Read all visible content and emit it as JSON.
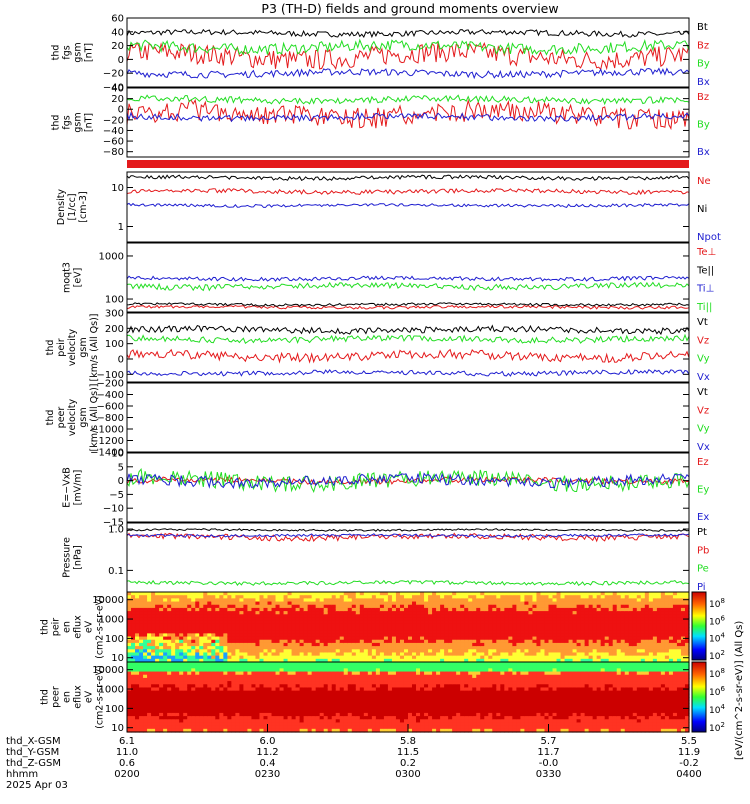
{
  "title": "P3 (TH-D) fields and ground moments overview",
  "colors": {
    "black": "#000000",
    "red": "#e41a1c",
    "green": "#22dd22",
    "blue": "#1f1fd0"
  },
  "time_axis": {
    "ticks": [
      "0200",
      "0230",
      "0300",
      "0330",
      "0400"
    ],
    "rows": [
      {
        "label": "thd_X-GSM",
        "values": [
          "6.1",
          "6.0",
          "5.8",
          "5.7",
          "5.5"
        ]
      },
      {
        "label": "thd_Y-GSM",
        "values": [
          "11.0",
          "11.2",
          "11.5",
          "11.7",
          "11.9"
        ]
      },
      {
        "label": "thd_Z-GSM",
        "values": [
          "0.6",
          "0.4",
          "0.2",
          "-0.0",
          "-0.2"
        ]
      },
      {
        "label": "hhmm",
        "values": []
      }
    ],
    "date": "2025 Apr 03"
  },
  "colorbar": {
    "label": "[eV/(cm^2-s-sr-eV)] (All Qs)",
    "upper_ticks": [
      "10^8",
      "10^6",
      "10^4",
      "10^2"
    ],
    "lower_ticks": [
      "10^8",
      "10^6",
      "10^4",
      "10^2"
    ]
  },
  "chart_data": [
    {
      "id": "p1",
      "type": "line",
      "ylabel": [
        "thd",
        "fgs",
        "gsm",
        "[nT]"
      ],
      "ylim": [
        -40,
        60
      ],
      "yticks": [
        "60",
        "40",
        "20",
        "0",
        "−20",
        "−40"
      ],
      "series": [
        {
          "name": "Bt",
          "color": "black",
          "base": 38,
          "amp": 4
        },
        {
          "name": "Bz",
          "color": "red",
          "base": 5,
          "amp": 15
        },
        {
          "name": "By",
          "color": "green",
          "base": 18,
          "amp": 8
        },
        {
          "name": "Bx",
          "color": "blue",
          "base": -20,
          "amp": 5
        }
      ]
    },
    {
      "id": "p2",
      "type": "line",
      "ylabel": [
        "thd",
        "fgs",
        "gsm",
        "[nT]"
      ],
      "ylim": [
        -90,
        40
      ],
      "yticks": [
        "40",
        "20",
        "0",
        "−20",
        "−40",
        "−60",
        "−80"
      ],
      "series": [
        {
          "name": "Bz",
          "color": "red",
          "base": -10,
          "amp": 20
        },
        {
          "name": "By",
          "color": "green",
          "base": 18,
          "amp": 6
        },
        {
          "name": "Bx",
          "color": "blue",
          "base": -15,
          "amp": 6
        }
      ]
    },
    {
      "id": "p3",
      "type": "line",
      "ylabel": [
        "Density",
        "[1/cc]",
        "[cm-3]"
      ],
      "ylim": [
        0.4,
        25
      ],
      "log": true,
      "yticks": [
        "10",
        "1"
      ],
      "series": [
        {
          "name": "Ne",
          "color": "red",
          "base": 8,
          "amp": 1
        },
        {
          "name": "Ni",
          "color": "black",
          "base": 18,
          "amp": 2
        },
        {
          "name": "Npot",
          "color": "blue",
          "base": 3.5,
          "amp": 0.3
        }
      ]
    },
    {
      "id": "p4",
      "type": "line",
      "ylabel": [
        "moqt3",
        "[eV]"
      ],
      "ylim": [
        50,
        2000
      ],
      "log": true,
      "yticks": [
        "1000",
        "100"
      ],
      "series": [
        {
          "name": "Te⊥",
          "color": "red",
          "base": 65,
          "amp": 5
        },
        {
          "name": "Te||",
          "color": "black",
          "base": 75,
          "amp": 5
        },
        {
          "name": "Ti⊥",
          "color": "blue",
          "base": 300,
          "amp": 30
        },
        {
          "name": "Ti||",
          "color": "green",
          "base": 200,
          "amp": 30
        }
      ]
    },
    {
      "id": "p5",
      "type": "line",
      "ylabel": [
        "thd",
        "peir",
        "velocity",
        "gsm",
        "[km/s (All Qs)]"
      ],
      "ylim": [
        -150,
        300
      ],
      "yticks": [
        "300",
        "200",
        "100",
        "0",
        "−100"
      ],
      "series": [
        {
          "name": "Vt",
          "color": "black",
          "base": 190,
          "amp": 20
        },
        {
          "name": "Vz",
          "color": "red",
          "base": 20,
          "amp": 30
        },
        {
          "name": "Vy",
          "color": "green",
          "base": 130,
          "amp": 20
        },
        {
          "name": "Vx",
          "color": "blue",
          "base": -90,
          "amp": 15
        }
      ]
    },
    {
      "id": "p6",
      "type": "line",
      "ylabel": [
        "thd",
        "peer",
        "velocity",
        "gsm",
        "[km/s (All Qs)]"
      ],
      "ylim": [
        -1400,
        -200
      ],
      "yticks": [
        "−200",
        "−400",
        "−600",
        "−800",
        "−1000",
        "−1200",
        "−1400"
      ],
      "series": [
        {
          "name": "Vt",
          "color": "black"
        },
        {
          "name": "Vz",
          "color": "red"
        },
        {
          "name": "Vy",
          "color": "green"
        },
        {
          "name": "Vx",
          "color": "blue"
        }
      ]
    },
    {
      "id": "p7",
      "type": "line",
      "ylabel": [
        "E=−VxB",
        "[mV/m]"
      ],
      "ylim": [
        -15,
        10
      ],
      "yticks": [
        "10",
        "5",
        "0",
        "−5",
        "−10",
        "−15"
      ],
      "series": [
        {
          "name": "Ez",
          "color": "red",
          "base": 0,
          "amp": 1
        },
        {
          "name": "Ey",
          "color": "green",
          "base": 0,
          "amp": 3
        },
        {
          "name": "Ex",
          "color": "blue",
          "base": 0,
          "amp": 2
        }
      ]
    },
    {
      "id": "p8",
      "type": "line",
      "ylabel": [
        "Pressure",
        "[nPa]"
      ],
      "ylim": [
        0.03,
        1.4
      ],
      "log": true,
      "yticks": [
        "1.0",
        "0.1"
      ],
      "series": [
        {
          "name": "Pt",
          "color": "black",
          "base": 0.95,
          "amp": 0.05
        },
        {
          "name": "Pb",
          "color": "red",
          "base": 0.65,
          "amp": 0.1
        },
        {
          "name": "Pe",
          "color": "green",
          "base": 0.05,
          "amp": 0.005
        },
        {
          "name": "Pi",
          "color": "blue",
          "base": 0.7,
          "amp": 0.05
        }
      ]
    },
    {
      "id": "p9",
      "type": "heatmap",
      "ylabel": [
        "thd",
        "peir",
        "en",
        "eflux",
        "eV",
        "(cm2-s-sr-eV)"
      ],
      "ylim": [
        6,
        25000
      ],
      "log": true,
      "yticks": [
        "10000",
        "1000",
        "100",
        "10"
      ]
    },
    {
      "id": "p10",
      "type": "heatmap",
      "ylabel": [
        "thd",
        "peer",
        "en",
        "eflux",
        "eV",
        "(cm2-s-sr-eV)"
      ],
      "ylim": [
        6,
        25000
      ],
      "log": true,
      "yticks": [
        "10000",
        "1000",
        "100",
        "10"
      ]
    }
  ]
}
